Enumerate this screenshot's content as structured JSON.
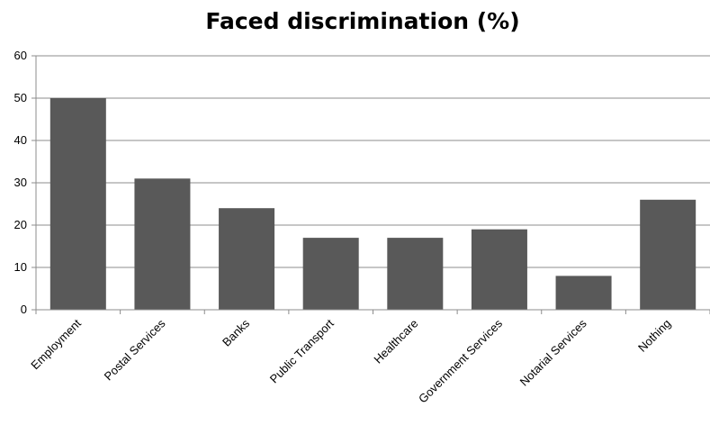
{
  "chart_data": {
    "type": "bar",
    "title": "Faced discrimination (%)",
    "xlabel": "",
    "ylabel": "",
    "ylim": [
      0,
      60
    ],
    "yticks": [
      0,
      10,
      20,
      30,
      40,
      50,
      60
    ],
    "grid": true,
    "legend": "none",
    "bar_color": "#595959",
    "grid_color": "#8c8c8c",
    "categories": [
      "Employment",
      "Postal Services",
      "Banks",
      "Public Transport",
      "Healthcare",
      "Government Services",
      "Notarial Services",
      "Nothing"
    ],
    "values": [
      50,
      31,
      24,
      17,
      17,
      19,
      8,
      26
    ]
  }
}
